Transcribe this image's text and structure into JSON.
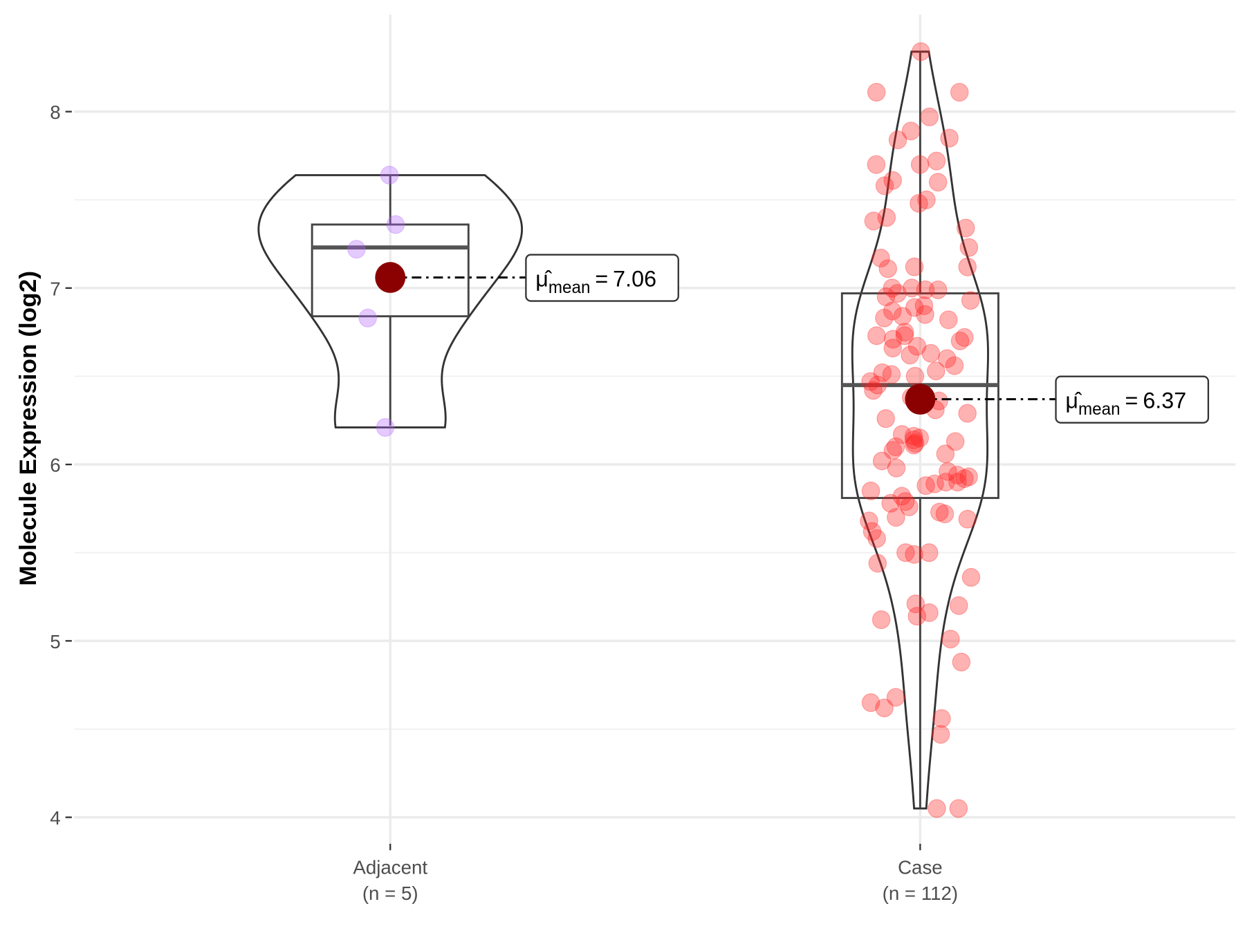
{
  "chart_data": {
    "type": "violin",
    "y_label": "Molecule Expression (log2)",
    "categories": [
      "Adjacent",
      "Case"
    ],
    "n_labels": [
      "(n = 5)",
      "(n = 112)"
    ],
    "ylim": [
      3.85,
      8.55
    ],
    "yticks": [
      4,
      5,
      6,
      7,
      8
    ],
    "grid": true,
    "mean_symbol": "μ̂",
    "mean_subscript": "mean",
    "mean_operator": "=",
    "mean_color": "#8b0000",
    "groups": [
      {
        "name": "Adjacent",
        "color": "#b266ff",
        "points": [
          7.64,
          7.36,
          7.22,
          6.83,
          6.21
        ],
        "box": {
          "low": 6.22,
          "q1": 6.84,
          "median": 7.23,
          "q3": 7.36,
          "high": 7.64
        },
        "mean": 7.06
      },
      {
        "name": "Case",
        "color": "#ff2222",
        "points": [
          8.34,
          8.11,
          8.11,
          7.97,
          7.89,
          7.84,
          7.85,
          7.72,
          7.7,
          7.7,
          7.61,
          7.6,
          7.58,
          7.5,
          7.48,
          7.4,
          7.38,
          7.34,
          7.23,
          7.17,
          7.12,
          7.12,
          7.11,
          7.0,
          6.99,
          6.99,
          6.97,
          6.95,
          6.93,
          6.89,
          6.87,
          6.85,
          6.84,
          6.83,
          6.82,
          6.75,
          6.73,
          6.73,
          6.72,
          6.71,
          6.7,
          6.67,
          6.66,
          6.63,
          6.62,
          6.6,
          6.53,
          6.52,
          6.51,
          6.5,
          6.45,
          6.42,
          6.38,
          6.36,
          6.31,
          6.29,
          6.17,
          6.16,
          6.15,
          6.14,
          6.13,
          6.12,
          6.11,
          6.1,
          6.08,
          6.06,
          6.02,
          5.98,
          5.96,
          5.94,
          5.93,
          5.92,
          5.9,
          5.9,
          5.89,
          5.88,
          5.85,
          5.82,
          5.79,
          5.78,
          5.76,
          5.73,
          5.72,
          5.7,
          5.69,
          5.68,
          5.5,
          5.5,
          5.49,
          5.44,
          5.36,
          5.21,
          5.2,
          5.16,
          5.14,
          5.12,
          5.01,
          4.88,
          4.68,
          4.65,
          4.62,
          4.56,
          4.47,
          4.05,
          4.05,
          7.0,
          6.56,
          6.26,
          5.62,
          5.58,
          6.47,
          6.9
        ],
        "box": {
          "low": 4.05,
          "q1": 5.81,
          "median": 6.45,
          "q3": 6.97,
          "high": 8.34
        },
        "mean": 6.37
      }
    ]
  }
}
